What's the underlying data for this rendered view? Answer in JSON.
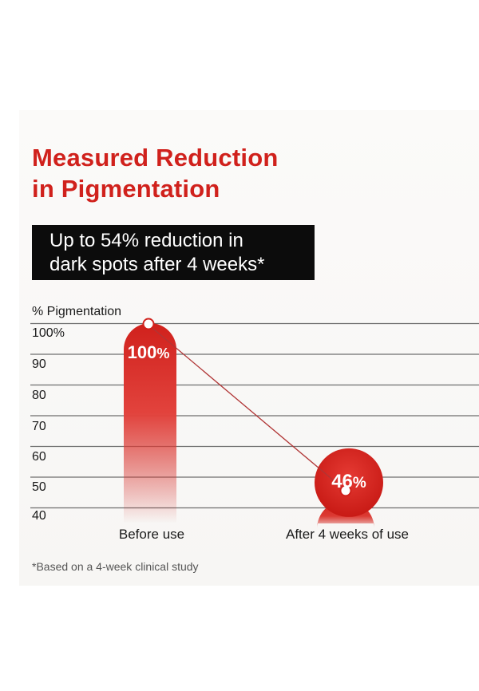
{
  "title_lines": [
    "Measured Reduction",
    "in Pigmentation"
  ],
  "banner_lines": [
    "Up to 54% reduction in",
    "dark spots after 4 weeks*"
  ],
  "footnote": "*Based on a 4-week clinical study",
  "colors": {
    "accent": "#d0211c",
    "banner_bg": "#0c0c0c",
    "grid": "#6e6e6e"
  },
  "chart_data": {
    "type": "bar",
    "ylabel": "% Pigmentation",
    "ylim": [
      40,
      100
    ],
    "yticks": [
      "100%",
      "90",
      "80",
      "70",
      "60",
      "50",
      "40"
    ],
    "categories": [
      "Before use",
      "After 4 weeks of use"
    ],
    "values": [
      100,
      46
    ],
    "value_labels": [
      "100%",
      "46%"
    ],
    "grid": true,
    "connector_line": true
  }
}
